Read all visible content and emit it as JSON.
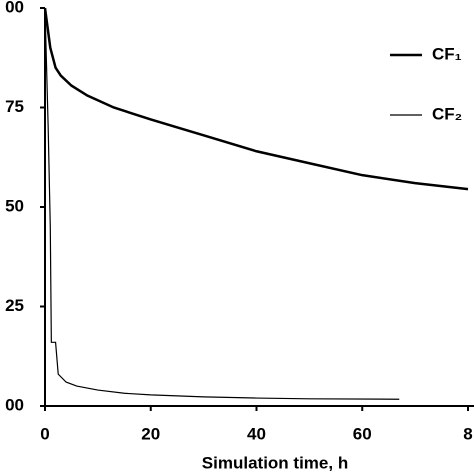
{
  "chart_data": {
    "type": "line",
    "xlabel": "Simulation time, h",
    "xlim": [
      0,
      80
    ],
    "xticks": [
      0,
      20,
      40,
      60,
      {
        "value": 80,
        "label": "8"
      }
    ],
    "ylim": [
      0,
      100
    ],
    "yticks": [
      {
        "value": 0,
        "label": "00"
      },
      25,
      50,
      75,
      {
        "value": 100,
        "label": "00"
      }
    ],
    "legend": "upper right",
    "series": [
      {
        "name": "CF₁",
        "color": "#000000",
        "width": 2.5,
        "x": [
          0,
          0.5,
          1,
          2,
          3,
          5,
          8,
          13,
          20,
          30,
          40,
          50,
          60,
          70,
          80
        ],
        "values": [
          100,
          95,
          90,
          85,
          83,
          80.5,
          78,
          75,
          72,
          68,
          64,
          61,
          58,
          56,
          54.5
        ]
      },
      {
        "name": "CF₂",
        "color": "#000000",
        "width": 1.2,
        "x": [
          0,
          0.6,
          1,
          1.2,
          2,
          2.5,
          4,
          6,
          10,
          15,
          20,
          30,
          40,
          50,
          67
        ],
        "values": [
          100,
          70,
          45,
          16,
          16,
          8,
          6,
          5,
          4,
          3.2,
          2.8,
          2.3,
          2,
          1.8,
          1.7
        ]
      }
    ]
  }
}
